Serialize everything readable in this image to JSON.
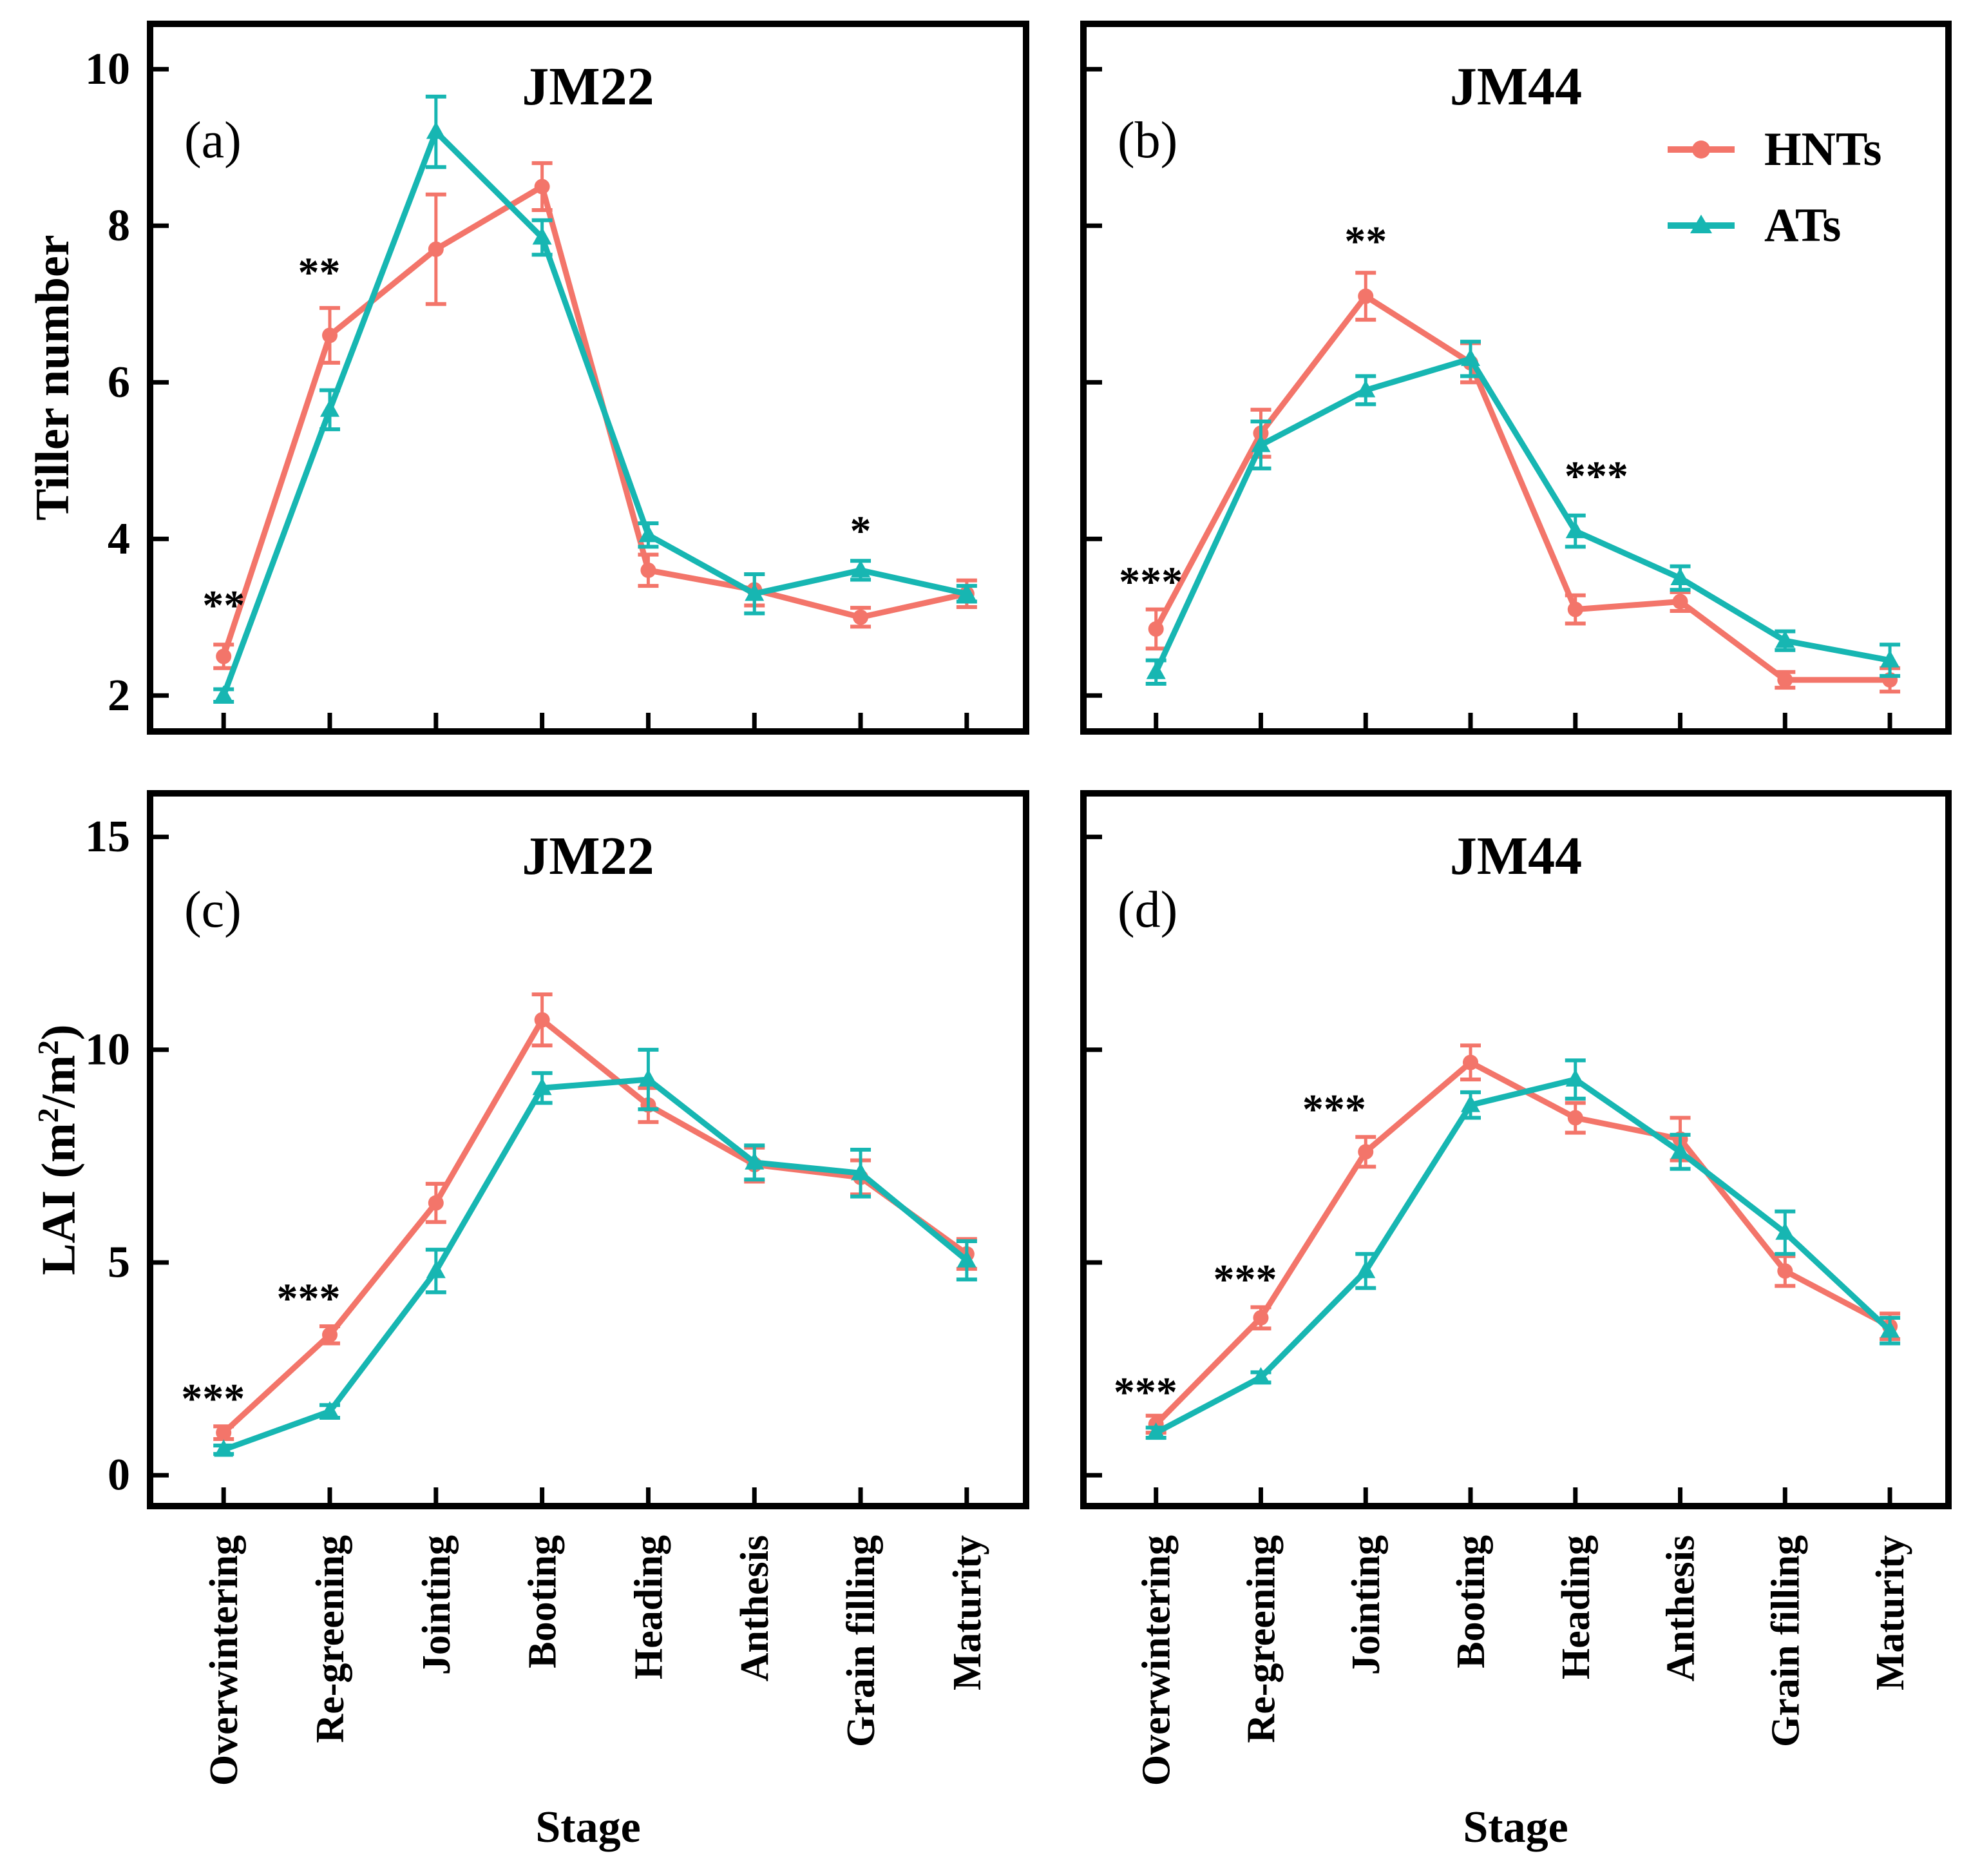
{
  "figure": {
    "ylabel_top": "Tiller number",
    "ylabel_bottom_parts": {
      "p1": "LAI (m",
      "sup1": "2",
      "p2": "/m",
      "sup2": "2",
      "p3": ")"
    },
    "xlabel": "Stage",
    "colors": {
      "hnts": "#F3756A",
      "ats": "#17B6B2",
      "axis": "#000000"
    },
    "legend": [
      {
        "name": "HNTs",
        "marker": "circle",
        "color_key": "hnts"
      },
      {
        "name": "ATs",
        "marker": "triangle",
        "color_key": "ats"
      }
    ]
  },
  "chart_data": {
    "type": "line",
    "categories": [
      "Overwintering",
      "Re-greening",
      "Jointing",
      "Booting",
      "Heading",
      "Anthesis",
      "Grain filling",
      "Maturity"
    ],
    "xlabel": "Stage",
    "legend_position": "top-right-panel-b",
    "grid": false,
    "panels": [
      {
        "id": "a",
        "label": "(a)",
        "title": "JM22",
        "ylabel": "Tiller number",
        "ylim": [
          1.5,
          10.62
        ],
        "yticks": [
          2,
          4,
          6,
          8,
          10
        ],
        "show_ytick_labels": true,
        "show_xtick_labels": false,
        "show_legend": false,
        "series": [
          {
            "name": "HNTs",
            "marker": "circle",
            "color_key": "hnts",
            "values": [
              2.5,
              6.6,
              7.7,
              8.5,
              3.6,
              3.35,
              3.0,
              3.3
            ],
            "errors": [
              0.15,
              0.35,
              0.7,
              0.3,
              0.2,
              0.2,
              0.12,
              0.17
            ]
          },
          {
            "name": "ATs",
            "marker": "triangle",
            "color_key": "ats",
            "values": [
              2.0,
              5.65,
              9.2,
              7.85,
              4.05,
              3.3,
              3.6,
              3.3
            ],
            "errors": [
              0.08,
              0.25,
              0.45,
              0.22,
              0.15,
              0.25,
              0.12,
              0.1
            ]
          }
        ],
        "significance": [
          {
            "x": 0,
            "y": 3.15,
            "text": "**"
          },
          {
            "x": 0.9,
            "y": 7.4,
            "text": "**"
          },
          {
            "x": 6,
            "y": 4.1,
            "text": "*"
          }
        ]
      },
      {
        "id": "b",
        "label": "(b)",
        "title": "JM44",
        "ylabel": "Tiller number",
        "ylim": [
          1.5,
          10.62
        ],
        "yticks": [
          2,
          4,
          6,
          8,
          10
        ],
        "show_ytick_labels": false,
        "show_xtick_labels": false,
        "show_legend": true,
        "series": [
          {
            "name": "HNTs",
            "marker": "circle",
            "color_key": "hnts",
            "values": [
              2.85,
              5.35,
              7.1,
              6.25,
              3.1,
              3.2,
              2.2,
              2.2
            ],
            "errors": [
              0.25,
              0.3,
              0.3,
              0.25,
              0.18,
              0.12,
              0.1,
              0.15
            ]
          },
          {
            "name": "ATs",
            "marker": "triangle",
            "color_key": "ats",
            "values": [
              2.3,
              5.2,
              5.9,
              6.3,
              4.1,
              3.5,
              2.7,
              2.45
            ],
            "errors": [
              0.15,
              0.3,
              0.18,
              0.22,
              0.2,
              0.15,
              0.12,
              0.2
            ]
          }
        ],
        "significance": [
          {
            "x": -0.05,
            "y": 3.45,
            "text": "***"
          },
          {
            "x": 2,
            "y": 7.8,
            "text": "**"
          },
          {
            "x": 4.2,
            "y": 4.8,
            "text": "***"
          }
        ]
      },
      {
        "id": "c",
        "label": "(c)",
        "title": "JM22",
        "ylabel": "LAI (m²/m²)",
        "ylim": [
          -0.8,
          16.1
        ],
        "yticks": [
          0,
          5,
          10,
          15
        ],
        "show_ytick_labels": true,
        "show_xtick_labels": true,
        "show_legend": false,
        "series": [
          {
            "name": "HNTs",
            "marker": "circle",
            "color_key": "hnts",
            "values": [
              1.0,
              3.3,
              6.4,
              10.7,
              8.7,
              7.3,
              7.0,
              5.2
            ],
            "errors": [
              0.15,
              0.2,
              0.45,
              0.6,
              0.4,
              0.4,
              0.4,
              0.35
            ]
          },
          {
            "name": "ATs",
            "marker": "triangle",
            "color_key": "ats",
            "values": [
              0.6,
              1.5,
              4.8,
              9.1,
              9.3,
              7.35,
              7.1,
              5.05
            ],
            "errors": [
              0.1,
              0.15,
              0.5,
              0.35,
              0.7,
              0.4,
              0.55,
              0.45
            ]
          }
        ],
        "significance": [
          {
            "x": -0.1,
            "y": 1.8,
            "text": "***"
          },
          {
            "x": 0.8,
            "y": 4.15,
            "text": "***"
          }
        ]
      },
      {
        "id": "d",
        "label": "(d)",
        "title": "JM44",
        "ylabel": "LAI (m²/m²)",
        "ylim": [
          -0.8,
          16.1
        ],
        "yticks": [
          0,
          5,
          10,
          15
        ],
        "show_ytick_labels": false,
        "show_xtick_labels": true,
        "show_legend": false,
        "series": [
          {
            "name": "HNTs",
            "marker": "circle",
            "color_key": "hnts",
            "values": [
              1.2,
              3.7,
              7.6,
              9.7,
              8.4,
              7.9,
              4.8,
              3.5
            ],
            "errors": [
              0.2,
              0.25,
              0.35,
              0.4,
              0.35,
              0.5,
              0.35,
              0.3
            ]
          },
          {
            "name": "ATs",
            "marker": "triangle",
            "color_key": "ats",
            "values": [
              1.0,
              2.3,
              4.8,
              8.7,
              9.3,
              7.6,
              5.7,
              3.4
            ],
            "errors": [
              0.12,
              0.12,
              0.4,
              0.3,
              0.45,
              0.4,
              0.5,
              0.3
            ]
          }
        ],
        "significance": [
          {
            "x": -0.1,
            "y": 1.95,
            "text": "***"
          },
          {
            "x": 0.85,
            "y": 4.6,
            "text": "***"
          },
          {
            "x": 1.7,
            "y": 8.6,
            "text": "***"
          }
        ]
      }
    ]
  }
}
